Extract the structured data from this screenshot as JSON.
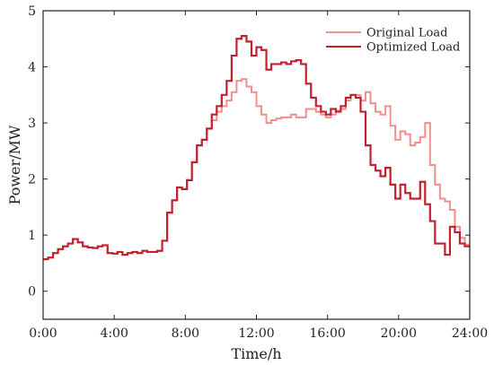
{
  "chart_data": {
    "type": "line",
    "step": true,
    "xlabel": "Time/h",
    "ylabel": "Power/MW",
    "xlim": [
      0,
      24
    ],
    "ylim": [
      -0.5,
      5
    ],
    "x_ticks": [
      {
        "value": 0,
        "label": "0:00"
      },
      {
        "value": 4,
        "label": "4:00"
      },
      {
        "value": 8,
        "label": "8:00"
      },
      {
        "value": 12,
        "label": "12:00"
      },
      {
        "value": 16,
        "label": "16:00"
      },
      {
        "value": 20,
        "label": "20:00"
      },
      {
        "value": 24,
        "label": "24:00"
      }
    ],
    "y_ticks": [
      {
        "value": 0,
        "label": "0"
      },
      {
        "value": 1,
        "label": "1"
      },
      {
        "value": 2,
        "label": "2"
      },
      {
        "value": 3,
        "label": "3"
      },
      {
        "value": 4,
        "label": "4"
      },
      {
        "value": 5,
        "label": "5"
      }
    ],
    "grid": false,
    "legend_position": "top-right",
    "series": [
      {
        "name": "Original Load",
        "color": "#f0908c",
        "values": [
          0.57,
          0.6,
          0.68,
          0.75,
          0.8,
          0.85,
          0.93,
          0.87,
          0.8,
          0.78,
          0.77,
          0.8,
          0.82,
          0.68,
          0.67,
          0.7,
          0.65,
          0.68,
          0.7,
          0.68,
          0.72,
          0.7,
          0.7,
          0.72,
          0.9,
          1.4,
          1.62,
          1.85,
          1.82,
          1.98,
          2.3,
          2.6,
          2.7,
          2.9,
          3.05,
          3.2,
          3.3,
          3.4,
          3.55,
          3.75,
          3.78,
          3.65,
          3.55,
          3.3,
          3.15,
          3.0,
          3.05,
          3.08,
          3.1,
          3.1,
          3.15,
          3.1,
          3.1,
          3.25,
          3.25,
          3.2,
          3.15,
          3.1,
          3.15,
          3.22,
          3.25,
          3.4,
          3.5,
          3.5,
          3.4,
          3.55,
          3.35,
          3.2,
          3.15,
          3.3,
          2.95,
          2.7,
          2.85,
          2.8,
          2.6,
          2.65,
          2.75,
          3.0,
          2.25,
          1.9,
          1.65,
          1.6,
          1.45,
          1.15,
          0.95,
          0.83
        ]
      },
      {
        "name": "Optimized Load",
        "color": "#c2202e",
        "values": [
          0.57,
          0.6,
          0.68,
          0.75,
          0.8,
          0.85,
          0.93,
          0.87,
          0.8,
          0.78,
          0.77,
          0.8,
          0.82,
          0.68,
          0.67,
          0.7,
          0.65,
          0.68,
          0.7,
          0.68,
          0.72,
          0.7,
          0.7,
          0.72,
          0.9,
          1.4,
          1.62,
          1.85,
          1.82,
          1.98,
          2.3,
          2.6,
          2.7,
          2.9,
          3.15,
          3.3,
          3.5,
          3.75,
          4.2,
          4.5,
          4.55,
          4.45,
          4.2,
          4.35,
          4.3,
          3.95,
          4.05,
          4.05,
          4.08,
          4.05,
          4.1,
          4.12,
          4.05,
          3.7,
          3.45,
          3.3,
          3.2,
          3.15,
          3.25,
          3.2,
          3.3,
          3.45,
          3.5,
          3.45,
          3.2,
          2.6,
          2.25,
          2.15,
          2.05,
          2.2,
          1.9,
          1.65,
          1.9,
          1.75,
          1.65,
          1.65,
          1.95,
          1.55,
          1.25,
          0.85,
          0.85,
          0.65,
          1.15,
          1.05,
          0.85,
          0.8
        ]
      }
    ]
  }
}
